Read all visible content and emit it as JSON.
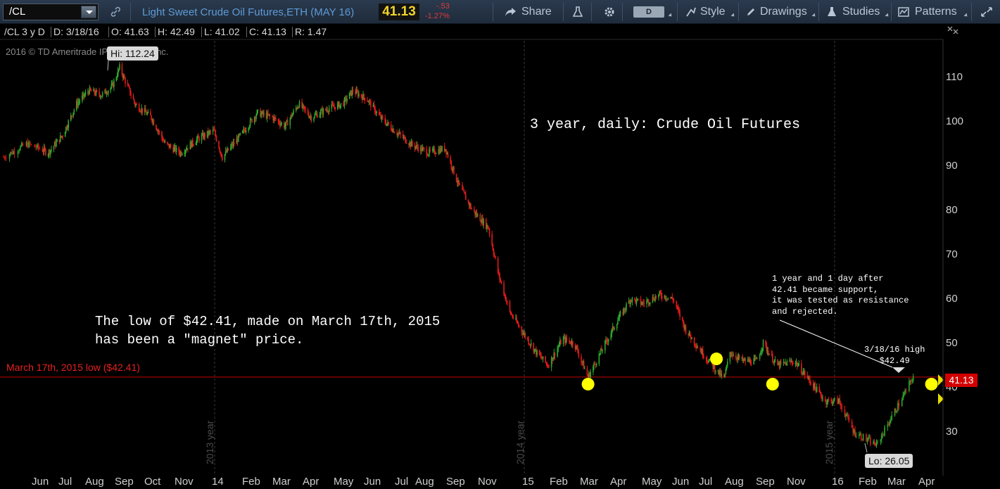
{
  "toolbar": {
    "symbol": "/CL",
    "description": "Light Sweet Crude Oil Futures,ETH (MAY 16)",
    "last_price": "41.13",
    "change": "-.53",
    "change_pct": "-1.27%",
    "share_label": "Share",
    "aggregation": "D",
    "style_label": "Style",
    "drawings_label": "Drawings",
    "studies_label": "Studies",
    "patterns_label": "Patterns"
  },
  "status": {
    "symbol_period": "/CL 3 y D",
    "date": "D: 3/18/16",
    "open": "O: 41.63",
    "high": "H: 42.49",
    "low": "L: 41.02",
    "close": "C: 41.13",
    "range": "R: 1.47"
  },
  "copyright": "2016 © TD Ameritrade IP Company, Inc.",
  "annotations": {
    "title": "3 year, daily: Crude Oil Futures",
    "magnet": "The low of $42.41, made on March 17th, 2015\nhas been a \"magnet\" price.",
    "note": "1 year and 1 day after\n42.41 became support,\nit was tested as resistance\nand rejected.",
    "high_note": "3/18/16 high\n$42.49",
    "support_label": "March 17th, 2015 low ($42.41)",
    "hi_label": "Hi: 112.24",
    "lo_label": "Lo: 26.05",
    "price_tag": "41.13"
  },
  "year_markers": [
    "2013 year",
    "2014 year",
    "2015 year"
  ],
  "colors": {
    "up_bar": "#2fa82f",
    "down_bar": "#e31b1b",
    "support_line": "#c80000",
    "marker": "#ffff00",
    "background": "#000000"
  },
  "chart_data": {
    "type": "line",
    "title": "3 year, daily: Crude Oil Futures",
    "xlabel": "",
    "ylabel": "",
    "ylim": [
      22,
      118
    ],
    "y_ticks": [
      "30",
      "40",
      "50",
      "60",
      "70",
      "80",
      "90",
      "100",
      "110"
    ],
    "x_ticks": [
      "Jun",
      "Jul",
      "Aug",
      "Sep",
      "Oct",
      "Nov",
      "14",
      "Feb",
      "Mar",
      "Apr",
      "May",
      "Jun",
      "Jul",
      "Aug",
      "Sep",
      "Nov",
      "15",
      "Feb",
      "Mar",
      "Apr",
      "May",
      "Jun",
      "Jul",
      "Aug",
      "Sep",
      "Nov",
      "16",
      "Feb",
      "Mar",
      "Apr"
    ],
    "x": [
      "2013-05-01",
      "2013-05-20",
      "2013-06-10",
      "2013-06-28",
      "2013-07-15",
      "2013-07-30",
      "2013-08-15",
      "2013-08-28",
      "2013-09-06",
      "2013-09-25",
      "2013-10-15",
      "2013-11-01",
      "2013-11-20",
      "2013-12-10",
      "2013-12-31",
      "2014-01-10",
      "2014-02-01",
      "2014-02-20",
      "2014-03-10",
      "2014-03-25",
      "2014-04-10",
      "2014-04-25",
      "2014-05-15",
      "2014-06-01",
      "2014-06-13",
      "2014-06-30",
      "2014-07-15",
      "2014-08-01",
      "2014-08-20",
      "2014-09-10",
      "2014-09-30",
      "2014-10-15",
      "2014-11-01",
      "2014-11-20",
      "2014-12-01",
      "2014-12-15",
      "2015-01-01",
      "2015-01-15",
      "2015-01-29",
      "2015-02-15",
      "2015-03-01",
      "2015-03-17",
      "2015-04-01",
      "2015-04-20",
      "2015-05-06",
      "2015-05-20",
      "2015-06-10",
      "2015-06-25",
      "2015-07-10",
      "2015-07-25",
      "2015-08-10",
      "2015-08-24",
      "2015-08-31",
      "2015-09-15",
      "2015-10-01",
      "2015-10-09",
      "2015-10-25",
      "2015-11-15",
      "2015-12-01",
      "2015-12-21",
      "2016-01-05",
      "2016-01-20",
      "2016-02-11",
      "2016-02-25",
      "2016-03-08",
      "2016-03-18"
    ],
    "series": [
      {
        "values": [
          92,
          95,
          93,
          97,
          104,
          107,
          106,
          108,
          112.2,
          104,
          101,
          95,
          93,
          96,
          98,
          92,
          97,
          102,
          101,
          99,
          104,
          101,
          103,
          104,
          107,
          105,
          101,
          98,
          95,
          93,
          94,
          86,
          80,
          76,
          66,
          57,
          52,
          48,
          45,
          51,
          50,
          42.4,
          48,
          55,
          60,
          59,
          61,
          60,
          53,
          49,
          45,
          42,
          48,
          46,
          46,
          50,
          45,
          46,
          42,
          37,
          37,
          30,
          27,
          33,
          38,
          42.5
        ]
      }
    ],
    "support_level": 42.41,
    "markers": [
      {
        "date": "2015-03-17",
        "value": 40.8
      },
      {
        "date": "2015-08-15",
        "value": 46.5
      },
      {
        "date": "2015-10-20",
        "value": 40.8
      },
      {
        "date": "2016-04-05",
        "value": 40.8
      }
    ]
  }
}
